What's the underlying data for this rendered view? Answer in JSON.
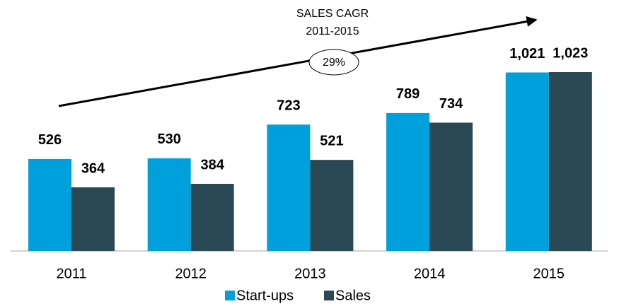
{
  "chart_data": {
    "type": "bar",
    "categories": [
      "2011",
      "2012",
      "2013",
      "2014",
      "2015"
    ],
    "series": [
      {
        "name": "Start-ups",
        "color": "#00a0dc",
        "values": [
          526,
          530,
          723,
          789,
          1021
        ],
        "value_labels": [
          "526",
          "530",
          "723",
          "789",
          "1,021"
        ]
      },
      {
        "name": "Sales",
        "color": "#2b4855",
        "values": [
          364,
          384,
          521,
          734,
          1023
        ],
        "value_labels": [
          "364",
          "384",
          "521",
          "734",
          "1,023"
        ]
      }
    ],
    "annotation": {
      "lines": [
        "SALES CAGR",
        "2011-2015"
      ],
      "value": "29%"
    }
  }
}
